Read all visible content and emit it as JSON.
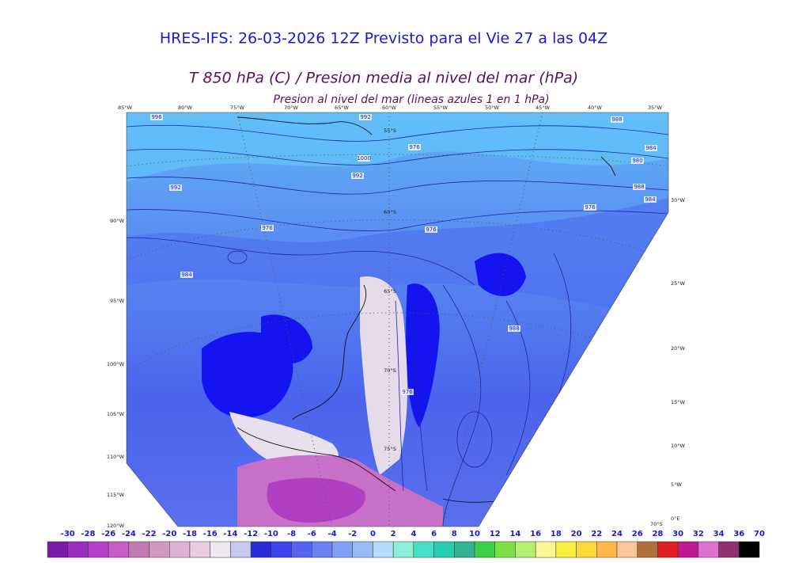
{
  "header": {
    "title": "HRES-IFS: 26-03-2026 12Z Previsto para el Vie 27 a las 04Z",
    "subtitle": "T 850 hPa (C) / Presion media al nivel del mar (hPa)",
    "note": "Presion al nivel del mar (lineas azules 1 en 1 hPa)"
  },
  "map": {
    "top_labels": [
      "85°W",
      "80°W",
      "75°W",
      "70°W",
      "65°W",
      "60°W",
      "55°W",
      "50°W",
      "45°W",
      "40°W",
      "35°W"
    ],
    "left_labels": [
      "90°W",
      "95°W",
      "100°W",
      "105°W",
      "110°W",
      "115°W",
      "120°W"
    ],
    "right_labels": [
      "30°W",
      "25°W",
      "20°W",
      "15°W",
      "10°W",
      "5°W",
      "0°E",
      "70°S"
    ],
    "lat_labels": [
      "55°S",
      "60°S",
      "65°S",
      "70°S",
      "75°S"
    ],
    "contour_labels": [
      996,
      992,
      988,
      984,
      980,
      976,
      1000,
      992,
      992,
      988,
      984,
      976,
      976,
      976,
      984,
      988,
      976
    ]
  },
  "colorbar": {
    "labels": [
      -30,
      -28,
      -26,
      -24,
      -22,
      -20,
      -18,
      -16,
      -14,
      -12,
      -10,
      -8,
      -6,
      -4,
      -2,
      0,
      2,
      4,
      6,
      8,
      10,
      12,
      14,
      16,
      18,
      20,
      22,
      24,
      26,
      28,
      30,
      32,
      34,
      36,
      70
    ],
    "colors": [
      "#7a1aa6",
      "#9a2cbe",
      "#b640cc",
      "#c65ec8",
      "#c27ab2",
      "#d298c2",
      "#deb2d2",
      "#e8cee0",
      "#f0e8f0",
      "#c8c8f0",
      "#2a2ad8",
      "#3c46ea",
      "#5464f0",
      "#6a82f2",
      "#7ea0f4",
      "#96bcf8",
      "#b4dcfc",
      "#8cf0d8",
      "#48e0c4",
      "#28ccb0",
      "#30b494",
      "#3cd048",
      "#7ce044",
      "#b4f070",
      "#f8f898",
      "#f8f040",
      "#fcd838",
      "#fcb848",
      "#f8c898",
      "#b0703c",
      "#e02020",
      "#c01890",
      "#e070d0",
      "#903070",
      "#000000"
    ]
  }
}
